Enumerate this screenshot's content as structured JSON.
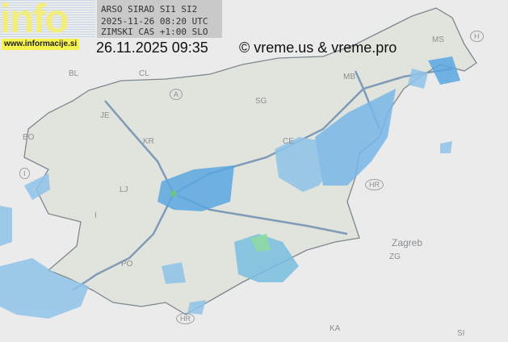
{
  "logo": {
    "text": "info",
    "url": "www.informacije.si"
  },
  "radar_header": {
    "line1": "ARSO SIRAD SI1 SI2",
    "line2": "2025-11-26 08:20 UTC",
    "line3": "ZIMSKI CAS +1:00 SLO"
  },
  "timestamp": "26.11.2025 09:35",
  "copyright": "© vreme.us & vreme.pro",
  "map_labels": {
    "bl": "BL",
    "cl": "CL",
    "a": "A",
    "je": "JE",
    "bo": "BO",
    "kr": "KR",
    "i": "I",
    "lj": "LJ",
    "idrija": "I",
    "po": "PO",
    "hr1": "HR",
    "hr2": "HR",
    "sg": "SG",
    "mb": "MB",
    "ce": "CE",
    "ms": "MS",
    "h": "H",
    "zagreb": "Zagreb",
    "zg": "ZG",
    "ka": "KA",
    "si": "SI"
  },
  "colors": {
    "radar_light": "#8fc3ea",
    "radar_mid": "#4f9ee0",
    "radar_heavy": "#6fd39a",
    "land": "#e3e6df",
    "border": "#7d8790",
    "highway": "#6f8fb0"
  }
}
